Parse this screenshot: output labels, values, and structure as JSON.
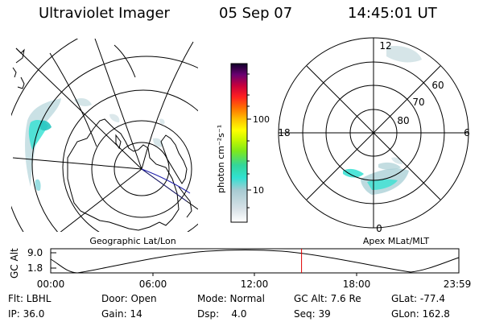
{
  "header": {
    "instrument": "Ultraviolet Imager",
    "date": "05 Sep 07",
    "time": "14:45:01 UT"
  },
  "geo_panel": {
    "caption": "Geographic Lat/Lon"
  },
  "mag_panel": {
    "caption": "Apex MLat/MLT",
    "mlt_labels": {
      "top": "12",
      "left": "18",
      "right": "6",
      "bottom": "0"
    },
    "lat_labels": [
      "60",
      "70",
      "80"
    ]
  },
  "colorbar": {
    "unit_label": "photon cm⁻²s⁻¹",
    "ticks": [
      "100",
      "10"
    ],
    "scale": "log",
    "colors": [
      "#ffffff",
      "#dde6ea",
      "#b4cbd3",
      "#80d6dd",
      "#31e1d2",
      "#29c7c1",
      "#52e28c",
      "#8ff000",
      "#cdfb00",
      "#ffff00",
      "#ffc800",
      "#ff8c00",
      "#ff4000",
      "#e00020",
      "#b0004a",
      "#70007a",
      "#2a004f",
      "#000033"
    ]
  },
  "altitude_plot": {
    "ylabel": "GC Alt",
    "yticks": [
      "9.0",
      "1.8"
    ],
    "xticks": [
      "00:00",
      "06:00",
      "12:00",
      "18:00",
      "23:59"
    ],
    "marker_color": "#e00000",
    "marker_time_hours": 14.75
  },
  "meta": {
    "filter": "Flt: LBHL",
    "door": "Door: Open",
    "mode": "Mode: Normal",
    "gc_alt": "GC Alt: 7.6 Re",
    "glat": "GLat: -77.4",
    "ip": "IP: 36.0",
    "gain": "Gain: 14",
    "dsp": "Dsp:    4.0",
    "seq": "Seq: 39",
    "glon": "GLon: 162.8"
  }
}
